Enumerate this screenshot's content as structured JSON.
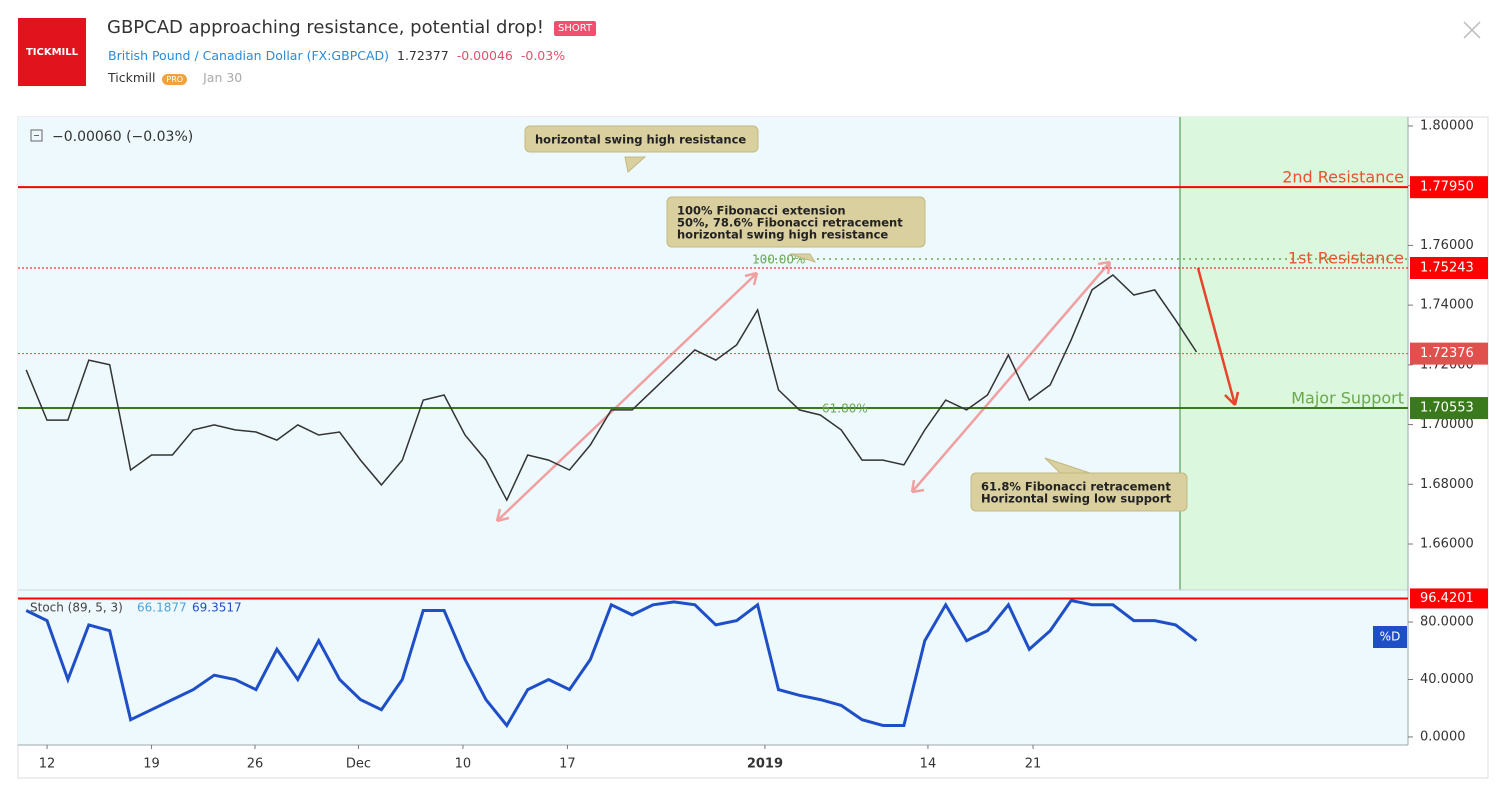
{
  "header": {
    "logo": "TICKMILL",
    "title": "GBPCAD approaching resistance, potential drop!",
    "badge": "SHORT",
    "symbol_name": "British Pound / Canadian Dollar",
    "symbol_code": "(FX:GBPCAD)",
    "price": "1.72377",
    "change": "-0.00046",
    "change_pct": "-0.03%",
    "author": "Tickmill",
    "author_badge": "PRO",
    "date": "Jan 30"
  },
  "chart_data": [
    {
      "type": "line",
      "legend_text": "−0.00060 (−0.03%)",
      "x": [
        -1,
        0,
        1,
        2,
        3,
        4,
        5,
        6,
        7,
        8,
        9,
        10,
        11,
        12,
        13,
        14,
        15,
        16,
        17,
        18,
        19,
        20,
        21,
        22,
        23,
        24,
        25,
        26,
        27,
        28,
        29,
        30,
        31,
        32,
        33,
        34,
        35,
        36,
        37,
        38,
        39,
        40,
        41,
        42,
        43,
        44,
        45,
        46,
        47,
        48,
        49,
        50,
        51,
        52,
        53,
        54,
        55
      ],
      "series": [
        {
          "name": "GBPCAD",
          "color": "#333333",
          "values": [
            1.7183,
            1.7015,
            1.7015,
            1.7216,
            1.72,
            1.6848,
            1.6898,
            1.6898,
            1.6982,
            1.6999,
            1.6982,
            1.6975,
            1.6948,
            1.6999,
            1.6965,
            1.6975,
            1.6881,
            1.6798,
            1.6881,
            1.7082,
            1.7099,
            1.6965,
            1.6881,
            1.6747,
            1.6898,
            1.6881,
            1.6848,
            1.6932,
            1.7049,
            1.7049,
            1.7116,
            1.7183,
            1.725,
            1.7216,
            1.7267,
            1.7384,
            1.7116,
            1.7049,
            1.7032,
            1.6982,
            1.6881,
            1.6881,
            1.6865,
            1.6982,
            1.7082,
            1.7049,
            1.7099,
            1.7233,
            1.7082,
            1.7133,
            1.7283,
            1.7451,
            1.7501,
            1.7434,
            1.7451,
            1.735,
            1.7243
          ]
        }
      ],
      "xlim": [
        -1.39,
        65.12
      ],
      "ylim": [
        1.6446,
        1.803
      ],
      "yticks": [
        {
          "value": 1.66,
          "label": "1.66000"
        },
        {
          "value": 1.68,
          "label": "1.68000"
        },
        {
          "value": 1.7,
          "label": "1.70000"
        },
        {
          "value": 1.72,
          "label": "1.72000"
        },
        {
          "value": 1.74,
          "label": "1.74000"
        },
        {
          "value": 1.76,
          "label": "1.76000"
        },
        {
          "value": 1.78,
          "label": "1.78000"
        },
        {
          "value": 1.8,
          "label": "1.80000"
        }
      ],
      "levels": [
        {
          "name": "2nd Resistance",
          "value": 1.7795,
          "label": "1.77950",
          "color": "#ff0000",
          "line_style": "solid",
          "name_color": "#e8532b"
        },
        {
          "name": "1st Resistance",
          "value": 1.75243,
          "label": "1.75243",
          "color": "#ff0000",
          "line_style": "dotted",
          "name_color": "#e8532b"
        },
        {
          "value": 1.72376,
          "label": "1.72376",
          "color": "#e0504d",
          "line_style": "dotted"
        },
        {
          "name": "Major Support",
          "value": 1.70553,
          "label": "1.70553",
          "color": "#3a7a1d",
          "line_style": "solid",
          "name_color": "#6aa84f"
        }
      ],
      "fib_labels": [
        "100.00%",
        "61.80%"
      ],
      "annotations": [
        {
          "text": [
            "horizontal swing high resistance"
          ]
        },
        {
          "text": [
            "100% Fibonacci extension",
            "50%, 78.6% Fibonacci retracement",
            "horizontal swing high resistance"
          ]
        },
        {
          "text": [
            "61.8% Fibonacci retracement",
            "Horizontal swing low support"
          ]
        }
      ]
    },
    {
      "type": "line",
      "title": "Stoch (89, 5, 3)",
      "readings": [
        66.1877,
        69.3517
      ],
      "x": [
        -1,
        0,
        1,
        2,
        3,
        4,
        5,
        6,
        7,
        8,
        9,
        10,
        11,
        12,
        13,
        14,
        15,
        16,
        17,
        18,
        19,
        20,
        21,
        22,
        23,
        24,
        25,
        26,
        27,
        28,
        29,
        30,
        31,
        32,
        33,
        34,
        35,
        36,
        37,
        38,
        39,
        40,
        41,
        42,
        43,
        44,
        45,
        46,
        47,
        48,
        49,
        50,
        51,
        52,
        53,
        54,
        55
      ],
      "series": [
        {
          "name": "%D",
          "color": "#1f4fc7",
          "values": [
            88,
            81,
            40,
            78,
            74,
            12,
            19,
            26,
            33,
            43,
            40,
            33,
            61,
            40,
            67,
            40,
            26,
            19,
            40,
            88,
            88,
            54,
            26,
            8,
            33,
            40,
            33,
            54,
            92,
            85,
            92,
            94,
            92,
            78,
            81,
            92,
            33,
            29,
            26,
            22,
            12,
            8,
            8,
            67,
            92,
            67,
            74,
            92,
            61,
            74,
            95,
            92,
            92,
            81,
            81,
            78,
            67
          ]
        }
      ],
      "level": {
        "value": 96.4201,
        "label": "96.4201",
        "color": "#ff0000"
      },
      "xlim": [
        -1.39,
        65.12
      ],
      "ylim": [
        -5.6,
        102.3
      ],
      "yticks": [
        {
          "value": 0,
          "label": "0.0000"
        },
        {
          "value": 40,
          "label": "40.0000"
        },
        {
          "value": 80,
          "label": "80.0000"
        }
      ],
      "xticks": [
        {
          "value": 0,
          "label": "12"
        },
        {
          "value": 5,
          "label": "19"
        },
        {
          "value": 9.95,
          "label": "26"
        },
        {
          "value": 14.9,
          "label": "Dec"
        },
        {
          "value": 19.9,
          "label": "10"
        },
        {
          "value": 24.9,
          "label": "17"
        },
        {
          "value": 34.35,
          "label": "2019"
        },
        {
          "value": 42.15,
          "label": "14"
        },
        {
          "value": 47.18,
          "label": "21"
        }
      ]
    }
  ]
}
